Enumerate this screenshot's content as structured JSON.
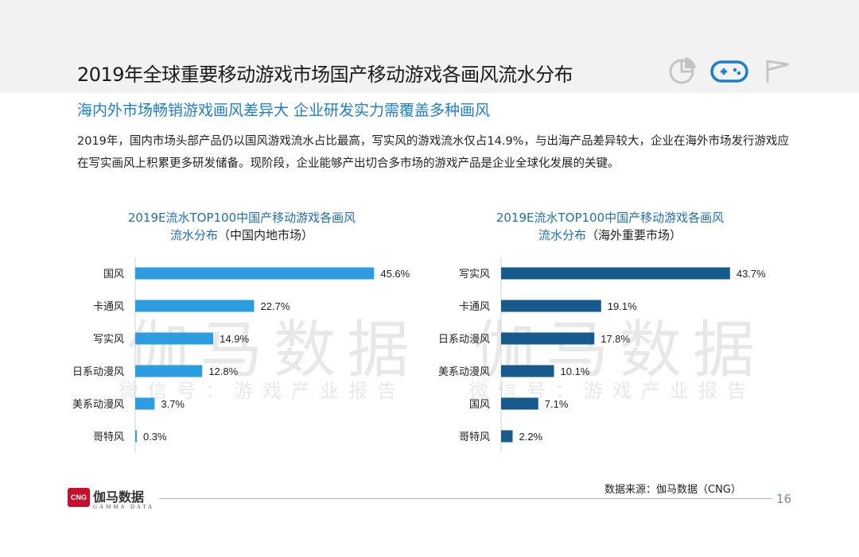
{
  "header": {
    "title": "2019年全球重要移动游戏市场国产移动游戏各画风流水分布",
    "icons": [
      "pie-chart-icon",
      "gamepad-icon",
      "flag-icon"
    ],
    "active_icon_color": "#1a7fc8"
  },
  "subtitle": "海内外市场畅销游戏画风差异大  企业研发实力需覆盖多种画风",
  "body_text": "2019年，国内市场头部产品仍以国风游戏流水占比最高，写实风的游戏流水仅占14.9%，与出海产品差异较大，企业在海外市场发行游戏应在写实画风上积累更多研发储备。现阶段，企业能够产出切合多市场的游戏产品是企业全球化发展的关键。",
  "watermark": {
    "big": "伽马数据",
    "small": "微信号：游戏产业报告"
  },
  "chart_data": [
    {
      "type": "bar",
      "orientation": "horizontal",
      "title_line1": "2019E流水TOP100中国产移动游戏各画风",
      "title_line2_colored": "流水分布",
      "title_line2_plain": "（中国内地市场）",
      "categories": [
        "国风",
        "卡通风",
        "写实风",
        "日系动漫风",
        "美系动漫风",
        "哥特风"
      ],
      "values": [
        45.6,
        22.7,
        14.9,
        12.8,
        3.7,
        0.3
      ],
      "value_labels": [
        "45.6%",
        "22.7%",
        "14.9%",
        "12.8%",
        "3.7%",
        "0.3%"
      ],
      "unit": "%",
      "xlim": [
        0,
        46
      ],
      "color": "#2e9de0"
    },
    {
      "type": "bar",
      "orientation": "horizontal",
      "title_line1": "2019E流水TOP100中国产移动游戏各画风",
      "title_line2_colored": "流水分布",
      "title_line2_plain": "（海外重要市场）",
      "categories": [
        "写实风",
        "卡通风",
        "日系动漫风",
        "美系动漫风",
        "国风",
        "哥特风"
      ],
      "values": [
        43.7,
        19.1,
        17.8,
        10.1,
        7.1,
        2.2
      ],
      "value_labels": [
        "43.7%",
        "19.1%",
        "17.8%",
        "10.1%",
        "7.1%",
        "2.2%"
      ],
      "unit": "%",
      "xlim": [
        0,
        46
      ],
      "color": "#175a8c"
    }
  ],
  "footer": {
    "source": "数据来源：伽马数据（CNG）",
    "page_number": "16",
    "logo_mark": "CNG",
    "logo_text": "伽马数据",
    "logo_sub": "GAMMA DATA"
  }
}
